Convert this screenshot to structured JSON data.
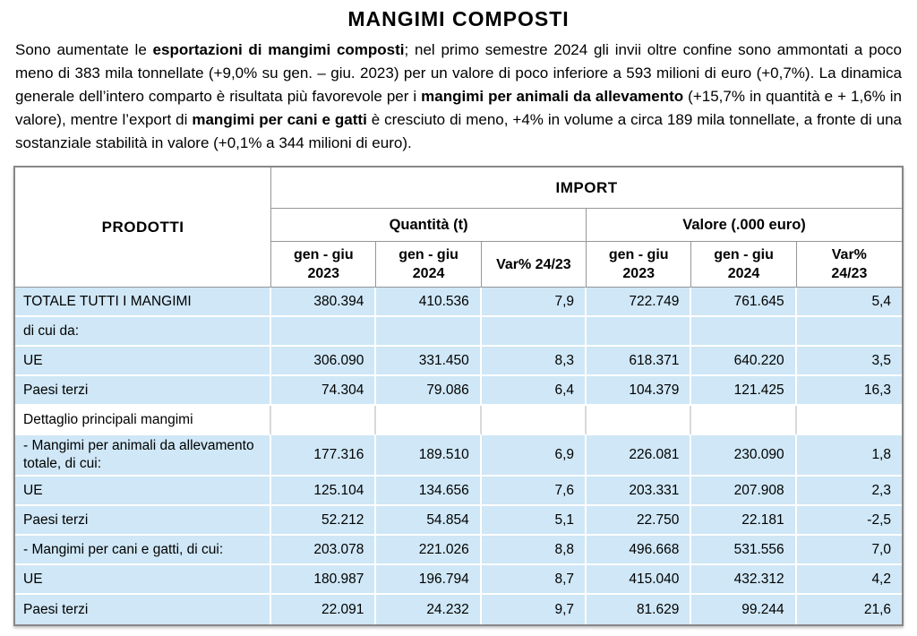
{
  "title": "MANGIMI COMPOSTI",
  "paragraph": {
    "segments": [
      {
        "text": "Sono aumentate le ",
        "bold": false
      },
      {
        "text": "esportazioni di mangimi composti",
        "bold": true
      },
      {
        "text": "; nel primo semestre 2024 gli invii oltre confine sono ammontati a poco meno di 383 mila tonnellate (+9,0% su gen. – giu. 2023) per un valore di poco inferiore a 593 milioni di euro (+0,7%). La dinamica generale dell’intero comparto è risultata più favorevole per i ",
        "bold": false
      },
      {
        "text": "mangimi per animali da allevamento",
        "bold": true
      },
      {
        "text": " (+15,7% in quantità e + 1,6% in valore), mentre l’export di ",
        "bold": false
      },
      {
        "text": "mangimi per cani e gatti",
        "bold": true
      },
      {
        "text": " è cresciuto di meno, +4% in volume a circa 189 mila tonnellate, a fronte di una sostanziale stabilità in valore (+0,1% a 344 milioni di euro).",
        "bold": false
      }
    ]
  },
  "table": {
    "header": {
      "products": "PRODOTTI",
      "import": "IMPORT",
      "quantity": "Quantità (t)",
      "value": "Valore (.000 euro)",
      "sub_columns": [
        {
          "lines": [
            "gen - giu",
            "2023"
          ]
        },
        {
          "lines": [
            "gen - giu",
            "2024"
          ]
        },
        {
          "lines": [
            "Var% 24/23"
          ]
        },
        {
          "lines": [
            "gen - giu",
            "2023"
          ]
        },
        {
          "lines": [
            "gen - giu",
            "2024"
          ]
        },
        {
          "lines": [
            "Var%",
            "24/23"
          ]
        }
      ]
    },
    "rows": [
      {
        "label": "TOTALE TUTTI I MANGIMI",
        "shaded": true,
        "values": [
          "380.394",
          "410.536",
          "7,9",
          "722.749",
          "761.645",
          "5,4"
        ]
      },
      {
        "label": "di cui da:",
        "shaded": true,
        "values": [
          "",
          "",
          "",
          "",
          "",
          ""
        ]
      },
      {
        "label": "UE",
        "shaded": true,
        "values": [
          "306.090",
          "331.450",
          "8,3",
          "618.371",
          "640.220",
          "3,5"
        ]
      },
      {
        "label": "Paesi terzi",
        "shaded": true,
        "values": [
          "74.304",
          "79.086",
          "6,4",
          "104.379",
          "121.425",
          "16,3"
        ]
      },
      {
        "label": "Dettaglio principali mangimi",
        "shaded": false,
        "values": [
          "",
          "",
          "",
          "",
          "",
          ""
        ]
      },
      {
        "label": "- Mangimi per animali da allevamento totale, di cui:",
        "shaded": true,
        "values": [
          "177.316",
          "189.510",
          "6,9",
          "226.081",
          "230.090",
          "1,8"
        ]
      },
      {
        "label": "UE",
        "shaded": true,
        "values": [
          "125.104",
          "134.656",
          "7,6",
          "203.331",
          "207.908",
          "2,3"
        ]
      },
      {
        "label": "Paesi terzi",
        "shaded": true,
        "values": [
          "52.212",
          "54.854",
          "5,1",
          "22.750",
          "22.181",
          "-2,5"
        ]
      },
      {
        "label": "- Mangimi per cani e gatti, di cui:",
        "shaded": true,
        "values": [
          "203.078",
          "221.026",
          "8,8",
          "496.668",
          "531.556",
          "7,0"
        ]
      },
      {
        "label": "UE",
        "shaded": true,
        "values": [
          "180.987",
          "196.794",
          "8,7",
          "415.040",
          "432.312",
          "4,2"
        ]
      },
      {
        "label": "Paesi terzi",
        "shaded": true,
        "values": [
          "22.091",
          "24.232",
          "9,7",
          "81.629",
          "99.244",
          "21,6"
        ]
      }
    ],
    "colors": {
      "row_blue": "#cfe7f6",
      "header_border": "#969696",
      "outer_border": "#878787"
    }
  }
}
